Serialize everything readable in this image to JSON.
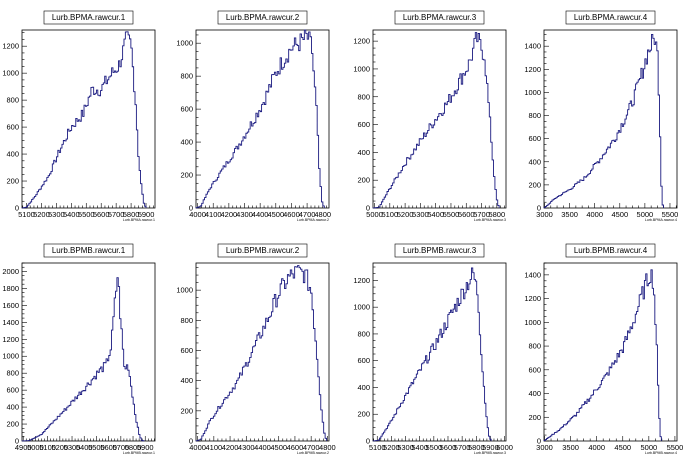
{
  "chart_data": [
    {
      "type": "histogram",
      "title": "Lurb.BPMA.rawcur.1",
      "xlabel": "Lurb.BPMA.rawcur.1",
      "xlim": [
        5070,
        5960
      ],
      "ylim": [
        0,
        1320
      ],
      "xticks": [
        5100,
        5200,
        5300,
        5400,
        5500,
        5600,
        5700,
        5800,
        5900
      ],
      "xtick_labels": [
        "5100",
        "5200",
        "5300",
        "5400",
        "5500",
        "5600",
        "5700",
        "5800",
        "5900"
      ],
      "yticks": [
        0,
        200,
        400,
        600,
        800,
        1000,
        1200
      ],
      "color": "#1a1a80",
      "profile": [
        [
          5070,
          0
        ],
        [
          5100,
          5
        ],
        [
          5160,
          90
        ],
        [
          5250,
          240
        ],
        [
          5320,
          420
        ],
        [
          5400,
          600
        ],
        [
          5480,
          700
        ],
        [
          5540,
          880
        ],
        [
          5600,
          880
        ],
        [
          5660,
          980
        ],
        [
          5720,
          1060
        ],
        [
          5770,
          1250
        ],
        [
          5800,
          1210
        ],
        [
          5830,
          800
        ],
        [
          5850,
          380
        ],
        [
          5870,
          150
        ],
        [
          5885,
          40
        ],
        [
          5900,
          0
        ]
      ]
    },
    {
      "type": "histogram",
      "title": "Lurb.BPMA.rawcur.2",
      "xlabel": "Lurb.BPMA.rawcur.2",
      "xlim": [
        3990,
        4840
      ],
      "ylim": [
        0,
        1080
      ],
      "xticks": [
        4000,
        4100,
        4200,
        4300,
        4400,
        4500,
        4600,
        4700,
        4800
      ],
      "xtick_labels": [
        "4000",
        "4100",
        "4200",
        "4300",
        "4400",
        "4500",
        "4600",
        "4700",
        "4800"
      ],
      "yticks": [
        0,
        200,
        400,
        600,
        800,
        1000
      ],
      "color": "#1a1a80",
      "profile": [
        [
          3990,
          0
        ],
        [
          4020,
          10
        ],
        [
          4080,
          120
        ],
        [
          4150,
          220
        ],
        [
          4250,
          360
        ],
        [
          4350,
          520
        ],
        [
          4420,
          640
        ],
        [
          4500,
          820
        ],
        [
          4550,
          900
        ],
        [
          4600,
          970
        ],
        [
          4650,
          1000
        ],
        [
          4700,
          1040
        ],
        [
          4730,
          980
        ],
        [
          4760,
          600
        ],
        [
          4780,
          200
        ],
        [
          4795,
          40
        ],
        [
          4810,
          0
        ]
      ]
    },
    {
      "type": "histogram",
      "title": "Lurb.BPMA.rawcur.3",
      "xlabel": "Lurb.BPMA.rawcur.3",
      "xlim": [
        4990,
        5860
      ],
      "ylim": [
        0,
        1280
      ],
      "xticks": [
        5000,
        5100,
        5200,
        5300,
        5400,
        5500,
        5600,
        5700,
        5800
      ],
      "xtick_labels": [
        "5000",
        "5100",
        "5200",
        "5300",
        "5400",
        "5500",
        "5600",
        "5700",
        "5800"
      ],
      "yticks": [
        0,
        200,
        400,
        600,
        800,
        1000,
        1200
      ],
      "color": "#1a1a80",
      "profile": [
        [
          4990,
          0
        ],
        [
          5030,
          5
        ],
        [
          5100,
          140
        ],
        [
          5200,
          320
        ],
        [
          5300,
          480
        ],
        [
          5400,
          640
        ],
        [
          5480,
          760
        ],
        [
          5550,
          900
        ],
        [
          5620,
          1040
        ],
        [
          5670,
          1220
        ],
        [
          5720,
          1100
        ],
        [
          5750,
          700
        ],
        [
          5780,
          260
        ],
        [
          5800,
          60
        ],
        [
          5815,
          0
        ]
      ]
    },
    {
      "type": "histogram",
      "title": "Lurb.BPMA.rawcur.4",
      "xlabel": "Lurb.BPMA.rawcur.4",
      "xlim": [
        2990,
        5640
      ],
      "ylim": [
        0,
        1540
      ],
      "xticks": [
        3000,
        3500,
        4000,
        4500,
        5000,
        5500
      ],
      "xtick_labels": [
        "3000",
        "3500",
        "4000",
        "4500",
        "5000",
        "5500"
      ],
      "yticks": [
        0,
        200,
        400,
        600,
        800,
        1000,
        1200,
        1400
      ],
      "color": "#1a1a80",
      "profile": [
        [
          2990,
          0
        ],
        [
          3050,
          20
        ],
        [
          3200,
          80
        ],
        [
          3500,
          160
        ],
        [
          3800,
          260
        ],
        [
          4100,
          420
        ],
        [
          4400,
          600
        ],
        [
          4700,
          860
        ],
        [
          4900,
          1100
        ],
        [
          5050,
          1330
        ],
        [
          5200,
          1480
        ],
        [
          5260,
          1300
        ],
        [
          5300,
          700
        ],
        [
          5330,
          200
        ],
        [
          5350,
          40
        ],
        [
          5370,
          0
        ]
      ]
    },
    {
      "type": "histogram",
      "title": "Lurb.BPMB.rawcur.1",
      "xlabel": "Lurb.BPMB.rawcur.1",
      "xlim": [
        4890,
        5980
      ],
      "ylim": [
        0,
        2100
      ],
      "xticks": [
        4900,
        5000,
        5100,
        5200,
        5300,
        5400,
        5500,
        5600,
        5700,
        5800,
        5900
      ],
      "xtick_labels": [
        "4900",
        "5000",
        "5100",
        "5200",
        "5300",
        "5400",
        "5500",
        "5600",
        "5700",
        "5800",
        "5900"
      ],
      "yticks": [
        0,
        200,
        400,
        600,
        800,
        1000,
        1200,
        1400,
        1600,
        1800,
        2000
      ],
      "color": "#1a1a80",
      "profile": [
        [
          4890,
          0
        ],
        [
          4950,
          5
        ],
        [
          5050,
          80
        ],
        [
          5150,
          230
        ],
        [
          5250,
          380
        ],
        [
          5350,
          540
        ],
        [
          5450,
          700
        ],
        [
          5520,
          820
        ],
        [
          5580,
          900
        ],
        [
          5620,
          1100
        ],
        [
          5650,
          1600
        ],
        [
          5675,
          1980
        ],
        [
          5700,
          1400
        ],
        [
          5730,
          850
        ],
        [
          5760,
          900
        ],
        [
          5790,
          600
        ],
        [
          5820,
          300
        ],
        [
          5850,
          80
        ],
        [
          5870,
          10
        ],
        [
          5890,
          0
        ]
      ]
    },
    {
      "type": "histogram",
      "title": "Lurb.BPMB.rawcur.2",
      "xlabel": "Lurb.BPMB.rawcur.2",
      "xlim": [
        3990,
        4810
      ],
      "ylim": [
        0,
        1180
      ],
      "xticks": [
        4000,
        4100,
        4200,
        4300,
        4400,
        4500,
        4600,
        4700,
        4800
      ],
      "xtick_labels": [
        "4000",
        "4100",
        "4200",
        "4300",
        "4400",
        "4500",
        "4600",
        "4700",
        "4800"
      ],
      "yticks": [
        0,
        200,
        400,
        600,
        800,
        1000
      ],
      "color": "#1a1a80",
      "profile": [
        [
          3990,
          0
        ],
        [
          4020,
          10
        ],
        [
          4080,
          140
        ],
        [
          4150,
          250
        ],
        [
          4250,
          400
        ],
        [
          4350,
          620
        ],
        [
          4430,
          800
        ],
        [
          4500,
          980
        ],
        [
          4560,
          1080
        ],
        [
          4610,
          1120
        ],
        [
          4660,
          1110
        ],
        [
          4700,
          1000
        ],
        [
          4730,
          650
        ],
        [
          4760,
          250
        ],
        [
          4780,
          60
        ],
        [
          4795,
          0
        ]
      ]
    },
    {
      "type": "histogram",
      "title": "Lurb.BPMB.rawcur.3",
      "xlabel": "Lurb.BPMB.rawcur.3",
      "xlim": [
        5070,
        6010
      ],
      "ylim": [
        0,
        1330
      ],
      "xticks": [
        5100,
        5200,
        5300,
        5400,
        5500,
        5600,
        5700,
        5800,
        5900,
        6000
      ],
      "xtick_labels": [
        "5100",
        "5200",
        "5300",
        "5400",
        "5500",
        "5600",
        "5700",
        "5800",
        "5900",
        "6000"
      ],
      "yticks": [
        0,
        200,
        400,
        600,
        800,
        1000,
        1200
      ],
      "color": "#1a1a80",
      "profile": [
        [
          5070,
          0
        ],
        [
          5110,
          5
        ],
        [
          5200,
          150
        ],
        [
          5300,
          340
        ],
        [
          5400,
          520
        ],
        [
          5500,
          700
        ],
        [
          5600,
          900
        ],
        [
          5680,
          1060
        ],
        [
          5740,
          1180
        ],
        [
          5780,
          1250
        ],
        [
          5810,
          1100
        ],
        [
          5840,
          600
        ],
        [
          5870,
          200
        ],
        [
          5890,
          40
        ],
        [
          5905,
          0
        ]
      ]
    },
    {
      "type": "histogram",
      "title": "Lurb.BPMB.rawcur.4",
      "xlabel": "Lurb.BPMB.rawcur.4",
      "xlim": [
        2990,
        5540
      ],
      "ylim": [
        0,
        1500
      ],
      "xticks": [
        3000,
        3500,
        4000,
        4500,
        5000,
        5500
      ],
      "xtick_labels": [
        "3000",
        "3500",
        "4000",
        "4500",
        "5000",
        "5500"
      ],
      "yticks": [
        0,
        200,
        400,
        600,
        800,
        1000,
        1200,
        1400
      ],
      "color": "#1a1a80",
      "profile": [
        [
          2990,
          0
        ],
        [
          3050,
          20
        ],
        [
          3300,
          100
        ],
        [
          3600,
          220
        ],
        [
          3900,
          380
        ],
        [
          4200,
          560
        ],
        [
          4500,
          780
        ],
        [
          4700,
          1000
        ],
        [
          4850,
          1200
        ],
        [
          4950,
          1330
        ],
        [
          5030,
          1420
        ],
        [
          5090,
          1350
        ],
        [
          5150,
          800
        ],
        [
          5190,
          300
        ],
        [
          5220,
          60
        ],
        [
          5240,
          0
        ]
      ]
    }
  ]
}
